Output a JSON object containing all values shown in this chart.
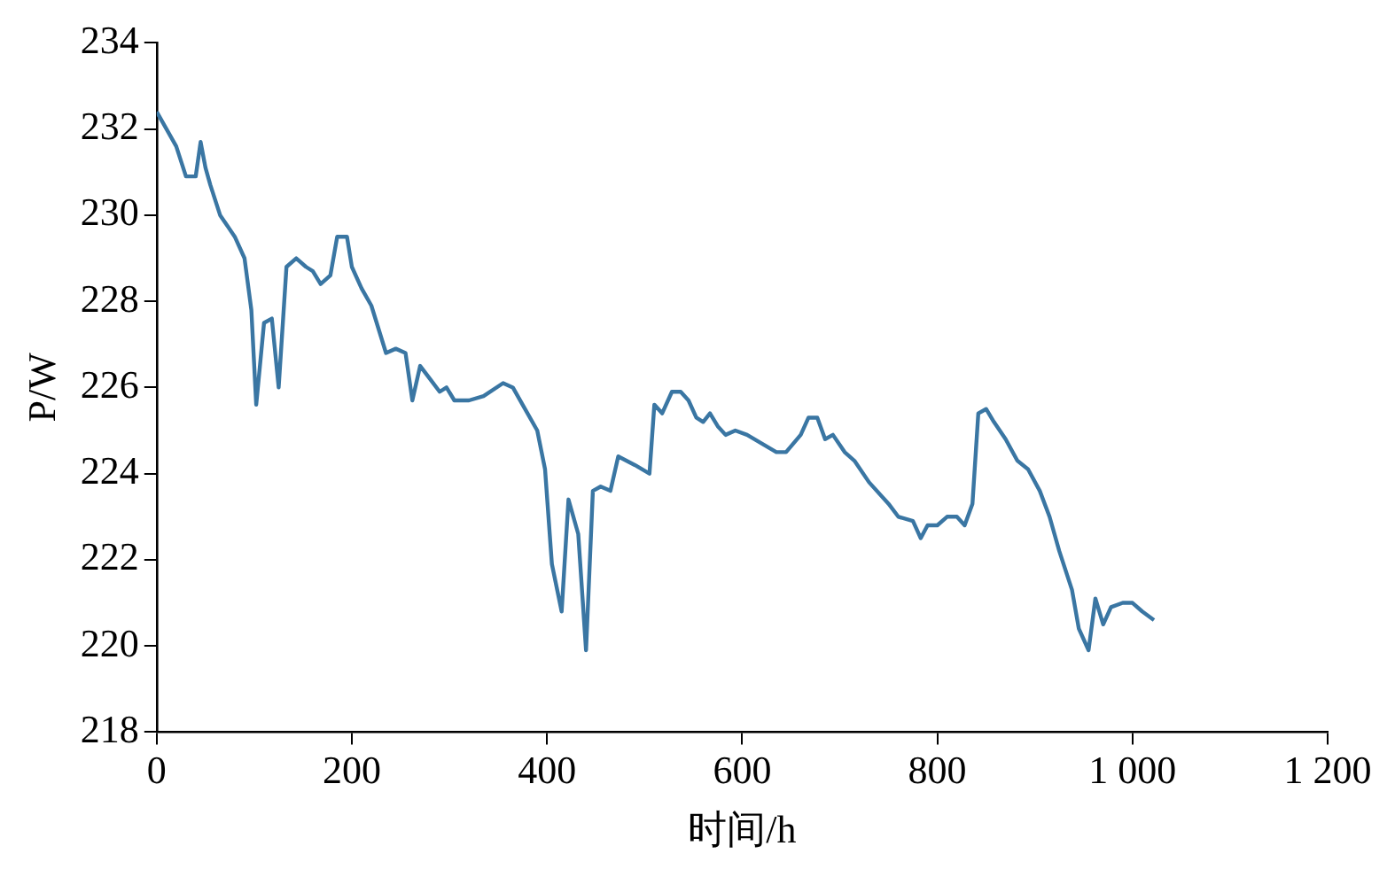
{
  "chart_data": {
    "type": "line",
    "xlabel": "时间/h",
    "ylabel": "P/W",
    "x": [
      0,
      10,
      20,
      30,
      40,
      45,
      50,
      55,
      65,
      80,
      90,
      97,
      102,
      110,
      118,
      125,
      133,
      143,
      153,
      160,
      168,
      178,
      185,
      195,
      200,
      210,
      220,
      235,
      245,
      255,
      262,
      270,
      280,
      290,
      297,
      305,
      320,
      335,
      355,
      365,
      375,
      390,
      398,
      405,
      415,
      422,
      432,
      440,
      447,
      455,
      465,
      473,
      490,
      505,
      510,
      518,
      528,
      537,
      545,
      553,
      560,
      567,
      575,
      583,
      593,
      605,
      620,
      635,
      645,
      660,
      668,
      677,
      685,
      693,
      705,
      715,
      730,
      750,
      760,
      775,
      783,
      790,
      800,
      810,
      820,
      828,
      836,
      842,
      850,
      858,
      870,
      882,
      893,
      905,
      915,
      925,
      938,
      945,
      955,
      962,
      970,
      978,
      990,
      1000,
      1010,
      1022
    ],
    "series": [
      {
        "color": "#3a76a3",
        "values": [
          232.4,
          232.0,
          231.6,
          230.9,
          230.9,
          231.7,
          231.1,
          230.7,
          230.0,
          229.5,
          229.0,
          227.8,
          225.6,
          227.5,
          227.6,
          226.0,
          228.8,
          229.0,
          228.8,
          228.7,
          228.4,
          228.6,
          229.5,
          229.5,
          228.8,
          228.3,
          227.9,
          226.8,
          226.9,
          226.8,
          225.7,
          226.5,
          226.2,
          225.9,
          226.0,
          225.7,
          225.7,
          225.8,
          226.1,
          226.0,
          225.6,
          225.0,
          224.1,
          221.9,
          220.8,
          223.4,
          222.6,
          219.9,
          223.6,
          223.7,
          223.6,
          224.4,
          224.2,
          224.0,
          225.6,
          225.4,
          225.9,
          225.9,
          225.7,
          225.3,
          225.2,
          225.4,
          225.1,
          224.9,
          225.0,
          224.9,
          224.7,
          224.5,
          224.5,
          224.9,
          225.3,
          225.3,
          224.8,
          224.9,
          224.5,
          224.3,
          223.8,
          223.3,
          223.0,
          222.9,
          222.5,
          222.8,
          222.8,
          223.0,
          223.0,
          222.8,
          223.3,
          225.4,
          225.5,
          225.2,
          224.8,
          224.3,
          224.1,
          223.6,
          223.0,
          222.2,
          221.3,
          220.4,
          219.9,
          221.1,
          220.5,
          220.9,
          221.0,
          221.0,
          220.8,
          220.6
        ]
      }
    ],
    "xlim": [
      0,
      1200
    ],
    "xticks": [
      0,
      200,
      400,
      600,
      800,
      {
        "value": 1000,
        "label": "1 000"
      },
      {
        "value": 1200,
        "label": "1 200"
      }
    ],
    "ylim": [
      218,
      234
    ],
    "yticks": [
      218,
      220,
      222,
      224,
      226,
      228,
      230,
      232,
      234
    ],
    "grid": false,
    "legend": false,
    "marker": "none",
    "line_style": "solid"
  }
}
